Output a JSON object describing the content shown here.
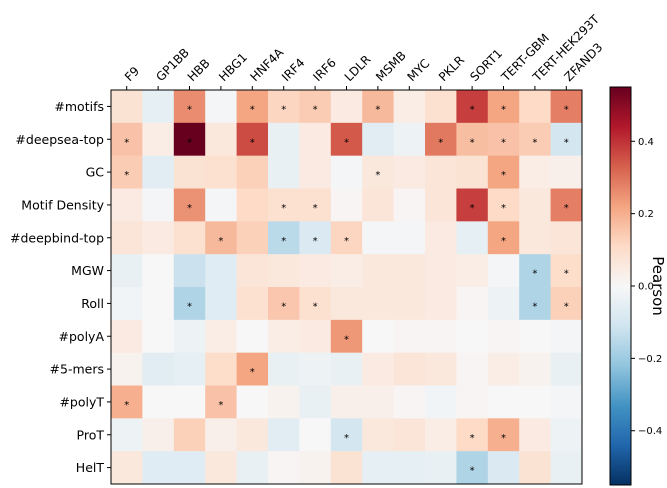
{
  "chart_data": {
    "type": "heatmap",
    "title": "",
    "x_labels": [
      "F9",
      "GP1BB",
      "HBB",
      "HBG1",
      "HNF4A",
      "IRF4",
      "IRF6",
      "LDLR",
      "MSMB",
      "MYC",
      "PKLR",
      "SORT1",
      "TERT-GBM",
      "TERT-HEK293T",
      "ZFAND3"
    ],
    "y_labels": [
      "#motifs",
      "#deepsea-top",
      "GC",
      "Motif Density",
      "#deepbind-top",
      "MGW",
      "Roll",
      "#polyA",
      "#5-mers",
      "#polyT",
      "ProT",
      "HelT"
    ],
    "values": [
      [
        0.08,
        -0.05,
        0.26,
        -0.01,
        0.22,
        0.12,
        0.14,
        0.05,
        0.18,
        0.04,
        0.09,
        0.38,
        0.22,
        0.11,
        0.28
      ],
      [
        0.16,
        0.04,
        0.55,
        0.06,
        0.36,
        -0.04,
        0.05,
        0.34,
        -0.06,
        -0.03,
        0.29,
        0.17,
        0.16,
        0.14,
        -0.1
      ],
      [
        0.14,
        -0.06,
        0.08,
        0.09,
        0.13,
        -0.04,
        0.05,
        -0.01,
        0.06,
        0.05,
        0.07,
        0.08,
        0.22,
        0.04,
        0.03
      ],
      [
        0.05,
        -0.01,
        0.25,
        -0.01,
        0.11,
        0.09,
        0.09,
        0.01,
        0.07,
        0.01,
        0.07,
        0.38,
        0.11,
        0.06,
        0.28
      ],
      [
        0.07,
        0.05,
        0.09,
        0.18,
        0.13,
        -0.15,
        -0.08,
        0.12,
        -0.01,
        -0.01,
        0.05,
        -0.05,
        0.22,
        0.06,
        0.07
      ],
      [
        -0.04,
        0.0,
        -0.12,
        -0.07,
        0.07,
        0.06,
        0.05,
        0.04,
        0.06,
        0.06,
        0.05,
        0.04,
        -0.01,
        -0.17,
        0.1
      ],
      [
        -0.02,
        0.0,
        -0.17,
        -0.07,
        0.09,
        0.15,
        0.09,
        0.06,
        0.06,
        0.06,
        0.05,
        0.01,
        -0.03,
        -0.17,
        0.13
      ],
      [
        0.05,
        0.0,
        -0.03,
        0.04,
        0.0,
        0.04,
        0.05,
        0.24,
        0.0,
        0.01,
        0.01,
        0.0,
        0.01,
        0.0,
        -0.01
      ],
      [
        0.02,
        -0.06,
        -0.05,
        0.1,
        0.22,
        -0.04,
        -0.03,
        -0.04,
        0.05,
        0.07,
        0.06,
        0.01,
        0.04,
        0.02,
        -0.04
      ],
      [
        0.2,
        0.0,
        0.0,
        0.16,
        0.0,
        0.02,
        -0.04,
        0.03,
        0.03,
        0.01,
        -0.02,
        0.01,
        0.0,
        0.0,
        -0.01
      ],
      [
        -0.03,
        0.03,
        0.13,
        0.03,
        0.06,
        -0.06,
        0.0,
        -0.1,
        0.06,
        0.07,
        0.04,
        0.11,
        0.2,
        0.05,
        -0.03
      ],
      [
        0.06,
        -0.07,
        -0.07,
        0.06,
        -0.04,
        0.01,
        0.02,
        0.08,
        -0.05,
        -0.05,
        -0.04,
        -0.17,
        -0.08,
        0.08,
        -0.04
      ]
    ],
    "significant": [
      [
        0,
        2
      ],
      [
        0,
        4
      ],
      [
        0,
        5
      ],
      [
        0,
        6
      ],
      [
        0,
        8
      ],
      [
        0,
        11
      ],
      [
        0,
        12
      ],
      [
        0,
        14
      ],
      [
        1,
        0
      ],
      [
        1,
        2
      ],
      [
        1,
        4
      ],
      [
        1,
        7
      ],
      [
        1,
        10
      ],
      [
        1,
        11
      ],
      [
        1,
        12
      ],
      [
        1,
        13
      ],
      [
        1,
        14
      ],
      [
        2,
        0
      ],
      [
        2,
        8
      ],
      [
        2,
        12
      ],
      [
        3,
        2
      ],
      [
        3,
        5
      ],
      [
        3,
        6
      ],
      [
        3,
        11
      ],
      [
        3,
        12
      ],
      [
        3,
        14
      ],
      [
        4,
        3
      ],
      [
        4,
        5
      ],
      [
        4,
        6
      ],
      [
        4,
        7
      ],
      [
        4,
        12
      ],
      [
        5,
        13
      ],
      [
        5,
        14
      ],
      [
        6,
        2
      ],
      [
        6,
        5
      ],
      [
        6,
        6
      ],
      [
        6,
        13
      ],
      [
        6,
        14
      ],
      [
        7,
        7
      ],
      [
        8,
        4
      ],
      [
        9,
        0
      ],
      [
        9,
        3
      ],
      [
        10,
        7
      ],
      [
        10,
        11
      ],
      [
        10,
        12
      ],
      [
        11,
        11
      ]
    ],
    "significance_marker": "*",
    "colormap": {
      "name": "RdBu_r",
      "stops": [
        "#053061",
        "#2166ac",
        "#4393c3",
        "#92c5de",
        "#d1e5f0",
        "#f7f7f7",
        "#fddbc7",
        "#f4a582",
        "#d6604d",
        "#b2182b",
        "#67001f"
      ]
    },
    "vmin": -0.55,
    "vmax": 0.55,
    "colorbar": {
      "label": "Pearson",
      "ticks": [
        0.4,
        0.2,
        0.0,
        -0.2,
        -0.4
      ],
      "tick_labels": [
        "0.4",
        "0.2",
        "0.0",
        "−0.2",
        "−0.4"
      ]
    }
  }
}
